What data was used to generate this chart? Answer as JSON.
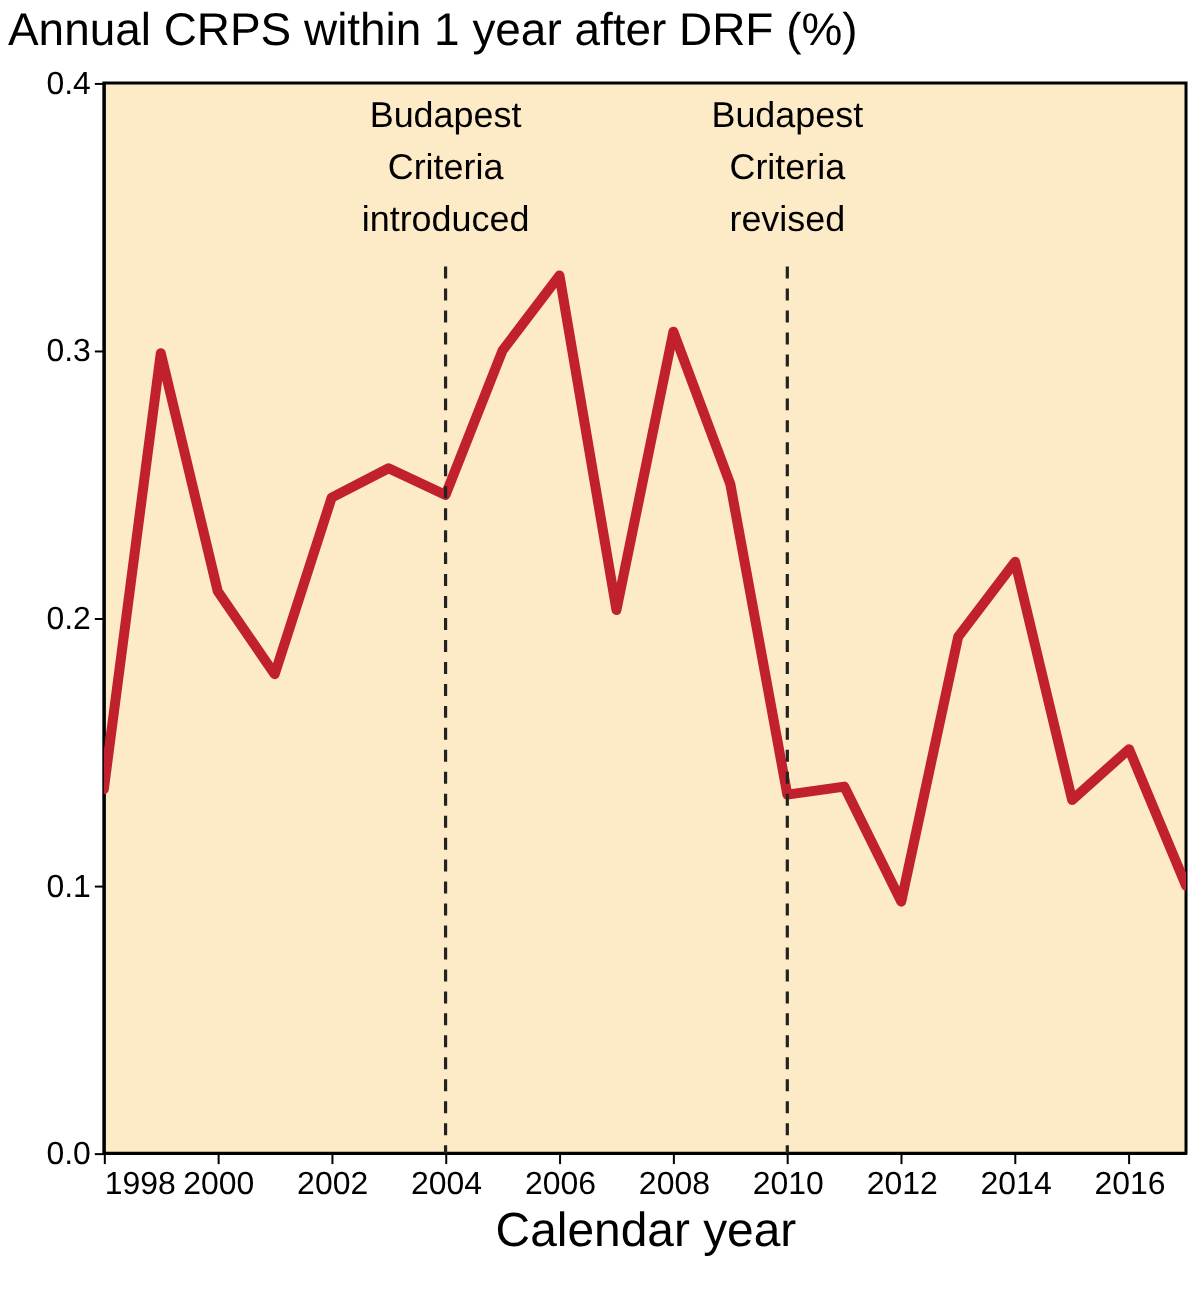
{
  "chart_data": {
    "type": "line",
    "title": "Annual CRPS within 1 year after DRF (%)",
    "xlabel": "Calendar year",
    "x": [
      1998,
      1999,
      2000,
      2001,
      2002,
      2003,
      2004,
      2005,
      2006,
      2007,
      2008,
      2009,
      2010,
      2011,
      2012,
      2013,
      2014,
      2015,
      2016,
      2017
    ],
    "series": [
      {
        "color": "#c1202f",
        "values": [
          0.136,
          0.299,
          0.21,
          0.179,
          0.245,
          0.256,
          0.246,
          0.3,
          0.328,
          0.203,
          0.307,
          0.25,
          0.134,
          0.137,
          0.094,
          0.193,
          0.221,
          0.132,
          0.151,
          0.1
        ]
      }
    ],
    "xlim": [
      1998,
      2017
    ],
    "xticks": [
      1998,
      2000,
      2002,
      2004,
      2006,
      2008,
      2010,
      2012,
      2014,
      2016
    ],
    "ylim": [
      0,
      0.4
    ],
    "yticks": [
      {
        "value": 0,
        "label": "0.0"
      },
      {
        "value": 0.1,
        "label": "0.1"
      },
      {
        "value": 0.2,
        "label": "0.2"
      },
      {
        "value": 0.3,
        "label": "0.3"
      },
      {
        "value": 0.4,
        "label": "0.4"
      }
    ],
    "ref_lines": [
      {
        "axis": "x",
        "value": 2004,
        "label": "Budapest Criteria introduced",
        "line_style": "dashed",
        "color": "#222222"
      },
      {
        "axis": "x",
        "value": 2010,
        "label": "Budapest Criteria revised",
        "line_style": "dashed",
        "color": "#222222"
      }
    ],
    "grid": false,
    "marker": "none",
    "line_style": "solid"
  }
}
